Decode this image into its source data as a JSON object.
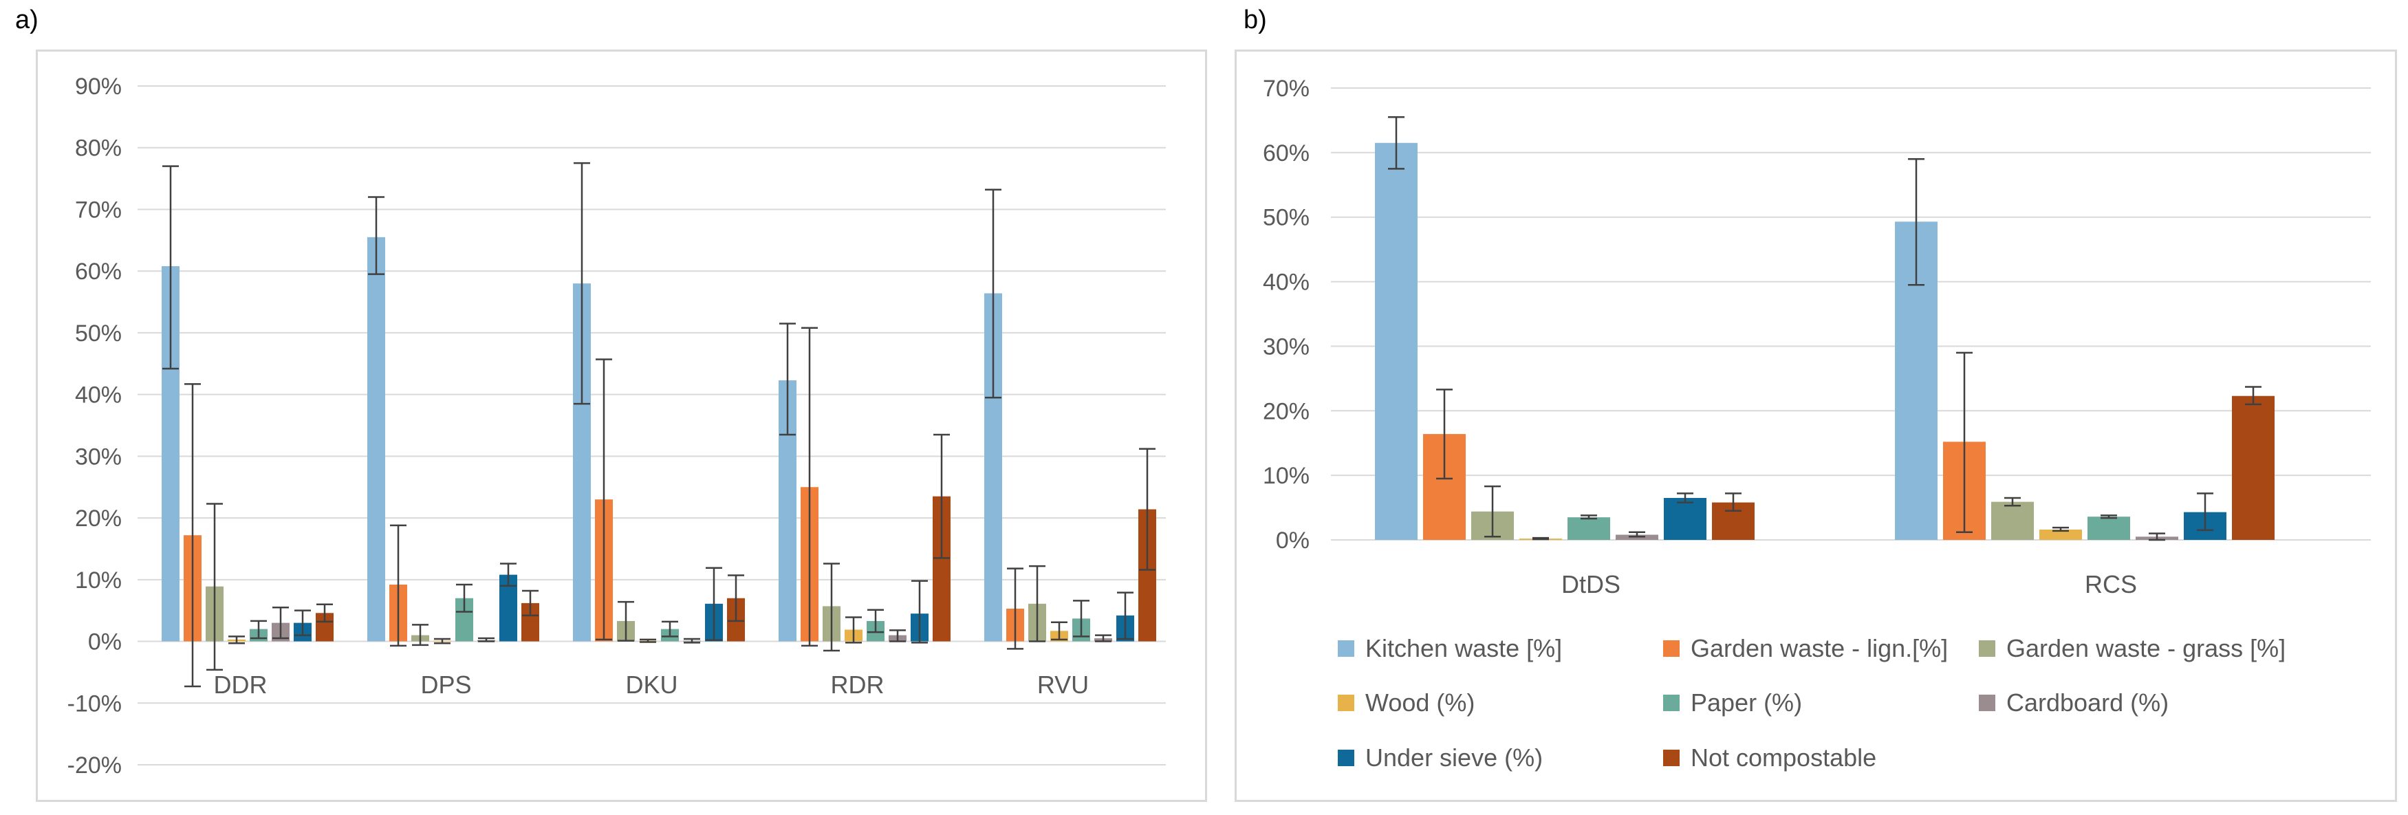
{
  "chart_data": [
    {
      "panel_label": "a)",
      "type": "bar",
      "title": "",
      "xlabel": "",
      "ylabel": "",
      "ylim": [
        -20,
        90
      ],
      "yticks": [
        "90%",
        "80%",
        "70%",
        "60%",
        "50%",
        "40%",
        "30%",
        "20%",
        "10%",
        "0%",
        "-10%",
        "-20%"
      ],
      "ytick_values": [
        90,
        80,
        70,
        60,
        50,
        40,
        30,
        20,
        10,
        0,
        -10,
        -20
      ],
      "grid": true,
      "categories": [
        "DDR",
        "DPS",
        "DKU",
        "RDR",
        "RVU"
      ],
      "series": [
        {
          "name": "Kitchen waste [%]",
          "color": "#8ab8d8",
          "values": [
            60.8,
            65.5,
            58.0,
            42.3,
            56.4
          ],
          "err_low": [
            44.2,
            59.5,
            38.5,
            33.5,
            39.5
          ],
          "err_high": [
            77.0,
            72.0,
            77.5,
            51.5,
            73.2
          ]
        },
        {
          "name": "Garden waste - lign.[%]",
          "color": "#f07f3c",
          "values": [
            17.2,
            9.2,
            23.0,
            25.0,
            5.3
          ],
          "err_low": [
            -7.3,
            -0.7,
            0.3,
            -0.7,
            -1.2
          ],
          "err_high": [
            41.7,
            18.8,
            45.7,
            50.8,
            11.8
          ]
        },
        {
          "name": "Garden waste - grass [%]",
          "color": "#a5ad87",
          "values": [
            8.9,
            1.0,
            3.3,
            5.7,
            6.1
          ],
          "err_low": [
            -4.6,
            -0.6,
            0.1,
            -1.5,
            0.0
          ],
          "err_high": [
            22.3,
            2.7,
            6.4,
            12.6,
            12.2
          ]
        },
        {
          "name": "Wood (%)",
          "color": "#e8b24a",
          "values": [
            0.3,
            0.1,
            0.1,
            1.9,
            1.7
          ],
          "err_low": [
            -0.3,
            -0.3,
            -0.1,
            -0.2,
            0.3
          ],
          "err_high": [
            0.8,
            0.4,
            0.3,
            3.9,
            3.1
          ]
        },
        {
          "name": "Paper (%)",
          "color": "#6aab9c",
          "values": [
            2.0,
            7.0,
            2.0,
            3.3,
            3.7
          ],
          "err_low": [
            0.5,
            4.8,
            0.8,
            1.5,
            0.8
          ],
          "err_high": [
            3.3,
            9.2,
            3.2,
            5.1,
            6.6
          ]
        },
        {
          "name": "Cardboard (%)",
          "color": "#9b8c8f",
          "values": [
            3.0,
            0.2,
            0.1,
            1.0,
            0.5
          ],
          "err_low": [
            0.5,
            0.0,
            -0.2,
            0.0,
            0.0
          ],
          "err_high": [
            5.5,
            0.5,
            0.4,
            1.8,
            1.0
          ]
        },
        {
          "name": "Under sieve (%)",
          "color": "#0f6a99",
          "values": [
            3.0,
            10.8,
            6.1,
            4.5,
            4.2
          ],
          "err_low": [
            1.0,
            9.0,
            0.2,
            -0.2,
            0.4
          ],
          "err_high": [
            5.0,
            12.6,
            11.9,
            9.8,
            7.9
          ]
        },
        {
          "name": "Not compostable",
          "color": "#a84815",
          "values": [
            4.6,
            6.2,
            7.0,
            23.5,
            21.4
          ],
          "err_low": [
            3.2,
            4.2,
            3.3,
            13.5,
            11.6
          ],
          "err_high": [
            6.0,
            8.2,
            10.7,
            33.5,
            31.2
          ]
        }
      ]
    },
    {
      "panel_label": "b)",
      "type": "bar",
      "title": "",
      "xlabel": "",
      "ylabel": "",
      "ylim": [
        0,
        70
      ],
      "yticks": [
        "70%",
        "60%",
        "50%",
        "40%",
        "30%",
        "20%",
        "10%",
        "0%"
      ],
      "ytick_values": [
        70,
        60,
        50,
        40,
        30,
        20,
        10,
        0
      ],
      "grid": true,
      "legend_position": "bottom",
      "categories": [
        "DtDS",
        "RCS"
      ],
      "series": [
        {
          "name": "Kitchen waste [%]",
          "color": "#8ab8d8",
          "values": [
            61.5,
            49.3
          ],
          "err_low": [
            57.5,
            39.5
          ],
          "err_high": [
            65.5,
            59.0
          ]
        },
        {
          "name": "Garden waste - lign.[%]",
          "color": "#f07f3c",
          "values": [
            16.4,
            15.2
          ],
          "err_low": [
            9.5,
            1.2
          ],
          "err_high": [
            23.3,
            29.0
          ]
        },
        {
          "name": "Garden waste - grass [%]",
          "color": "#a5ad87",
          "values": [
            4.4,
            5.9
          ],
          "err_low": [
            0.5,
            5.3
          ],
          "err_high": [
            8.3,
            6.5
          ]
        },
        {
          "name": "Wood (%)",
          "color": "#e8b24a",
          "values": [
            0.2,
            1.6
          ],
          "err_low": [
            0.1,
            1.4
          ],
          "err_high": [
            0.3,
            1.9
          ]
        },
        {
          "name": "Paper (%)",
          "color": "#6aab9c",
          "values": [
            3.5,
            3.6
          ],
          "err_low": [
            3.3,
            3.4
          ],
          "err_high": [
            3.8,
            3.8
          ]
        },
        {
          "name": "Cardboard (%)",
          "color": "#9b8c8f",
          "values": [
            0.8,
            0.5
          ],
          "err_low": [
            0.5,
            0.0
          ],
          "err_high": [
            1.2,
            1.0
          ]
        },
        {
          "name": "Under sieve (%)",
          "color": "#0f6a99",
          "values": [
            6.5,
            4.3
          ],
          "err_low": [
            5.8,
            1.5
          ],
          "err_high": [
            7.2,
            7.2
          ]
        },
        {
          "name": "Not compostable",
          "color": "#a84815",
          "values": [
            5.8,
            22.3
          ],
          "err_low": [
            4.5,
            21.0
          ],
          "err_high": [
            7.2,
            23.7
          ]
        }
      ]
    }
  ]
}
